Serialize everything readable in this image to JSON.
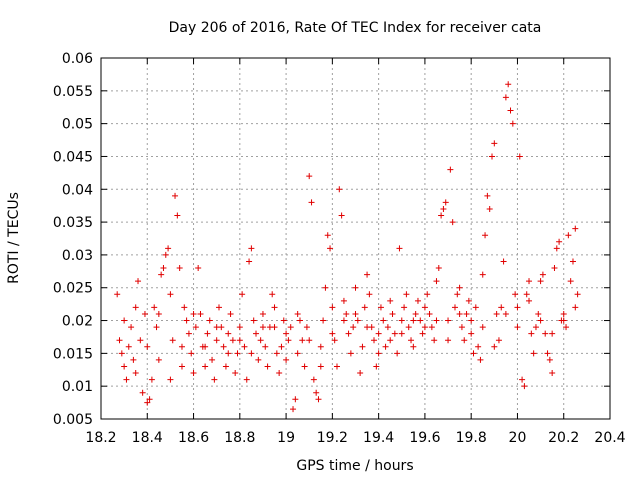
{
  "chart_data": {
    "type": "scatter",
    "title": "Day 206 of 2016, Rate Of TEC Index for receiver cata",
    "xlabel": "GPS time / hours",
    "ylabel": "ROTI / TECUs",
    "xlim": [
      18.2,
      20.4
    ],
    "ylim": [
      0.005,
      0.06
    ],
    "xticks": [
      "18.2",
      "18.4",
      "18.6",
      "18.8",
      "19",
      "19.2",
      "19.4",
      "19.6",
      "19.8",
      "20",
      "20.2",
      "20.4"
    ],
    "yticks": [
      "0.005",
      "0.01",
      "0.015",
      "0.02",
      "0.025",
      "0.03",
      "0.035",
      "0.04",
      "0.045",
      "0.05",
      "0.055",
      "0.06"
    ],
    "grid": true,
    "marker": "+",
    "color": "#e00000",
    "series": [
      {
        "name": "ROTI",
        "points": [
          [
            18.27,
            0.024
          ],
          [
            18.28,
            0.017
          ],
          [
            18.29,
            0.015
          ],
          [
            18.3,
            0.013
          ],
          [
            18.31,
            0.011
          ],
          [
            18.32,
            0.016
          ],
          [
            18.33,
            0.019
          ],
          [
            18.34,
            0.014
          ],
          [
            18.35,
            0.022
          ],
          [
            18.36,
            0.026
          ],
          [
            18.37,
            0.017
          ],
          [
            18.38,
            0.009
          ],
          [
            18.39,
            0.021
          ],
          [
            18.4,
            0.0075
          ],
          [
            18.41,
            0.008
          ],
          [
            18.42,
            0.011
          ],
          [
            18.43,
            0.022
          ],
          [
            18.44,
            0.019
          ],
          [
            18.45,
            0.014
          ],
          [
            18.46,
            0.027
          ],
          [
            18.47,
            0.028
          ],
          [
            18.48,
            0.03
          ],
          [
            18.49,
            0.031
          ],
          [
            18.5,
            0.011
          ],
          [
            18.51,
            0.017
          ],
          [
            18.52,
            0.039
          ],
          [
            18.53,
            0.036
          ],
          [
            18.54,
            0.028
          ],
          [
            18.55,
            0.013
          ],
          [
            18.56,
            0.022
          ],
          [
            18.57,
            0.02
          ],
          [
            18.58,
            0.018
          ],
          [
            18.59,
            0.015
          ],
          [
            18.6,
            0.012
          ],
          [
            18.61,
            0.019
          ],
          [
            18.62,
            0.028
          ],
          [
            18.63,
            0.021
          ],
          [
            18.64,
            0.016
          ],
          [
            18.65,
            0.013
          ],
          [
            18.66,
            0.018
          ],
          [
            18.67,
            0.02
          ],
          [
            18.68,
            0.014
          ],
          [
            18.69,
            0.011
          ],
          [
            18.7,
            0.017
          ],
          [
            18.71,
            0.022
          ],
          [
            18.72,
            0.019
          ],
          [
            18.73,
            0.016
          ],
          [
            18.74,
            0.013
          ],
          [
            18.75,
            0.018
          ],
          [
            18.76,
            0.021
          ],
          [
            18.77,
            0.017
          ],
          [
            18.78,
            0.012
          ],
          [
            18.79,
            0.015
          ],
          [
            18.8,
            0.019
          ],
          [
            18.81,
            0.024
          ],
          [
            18.82,
            0.016
          ],
          [
            18.83,
            0.011
          ],
          [
            18.84,
            0.029
          ],
          [
            18.85,
            0.031
          ],
          [
            18.86,
            0.02
          ],
          [
            18.87,
            0.018
          ],
          [
            18.88,
            0.014
          ],
          [
            18.89,
            0.017
          ],
          [
            18.9,
            0.021
          ],
          [
            18.91,
            0.016
          ],
          [
            18.92,
            0.013
          ],
          [
            18.93,
            0.019
          ],
          [
            18.94,
            0.024
          ],
          [
            18.95,
            0.019
          ],
          [
            18.96,
            0.015
          ],
          [
            18.97,
            0.012
          ],
          [
            18.98,
            0.016
          ],
          [
            18.99,
            0.02
          ],
          [
            19.0,
            0.014
          ],
          [
            19.01,
            0.017
          ],
          [
            19.02,
            0.019
          ],
          [
            19.03,
            0.0065
          ],
          [
            19.04,
            0.008
          ],
          [
            19.05,
            0.015
          ],
          [
            19.06,
            0.02
          ],
          [
            19.07,
            0.017
          ],
          [
            19.08,
            0.013
          ],
          [
            19.09,
            0.019
          ],
          [
            19.1,
            0.042
          ],
          [
            19.11,
            0.038
          ],
          [
            19.12,
            0.011
          ],
          [
            19.13,
            0.009
          ],
          [
            19.14,
            0.008
          ],
          [
            19.15,
            0.016
          ],
          [
            19.16,
            0.02
          ],
          [
            19.17,
            0.025
          ],
          [
            19.18,
            0.033
          ],
          [
            19.19,
            0.031
          ],
          [
            19.2,
            0.022
          ],
          [
            19.21,
            0.017
          ],
          [
            19.22,
            0.013
          ],
          [
            19.23,
            0.04
          ],
          [
            19.24,
            0.036
          ],
          [
            19.25,
            0.023
          ],
          [
            19.26,
            0.021
          ],
          [
            19.27,
            0.018
          ],
          [
            19.28,
            0.015
          ],
          [
            19.29,
            0.019
          ],
          [
            19.3,
            0.025
          ],
          [
            19.31,
            0.02
          ],
          [
            19.32,
            0.012
          ],
          [
            19.33,
            0.016
          ],
          [
            19.34,
            0.022
          ],
          [
            19.35,
            0.027
          ],
          [
            19.36,
            0.024
          ],
          [
            19.37,
            0.019
          ],
          [
            19.38,
            0.017
          ],
          [
            19.39,
            0.013
          ],
          [
            19.4,
            0.018
          ],
          [
            19.41,
            0.022
          ],
          [
            19.42,
            0.02
          ],
          [
            19.43,
            0.016
          ],
          [
            19.44,
            0.019
          ],
          [
            19.45,
            0.023
          ],
          [
            19.46,
            0.021
          ],
          [
            19.47,
            0.018
          ],
          [
            19.48,
            0.015
          ],
          [
            19.49,
            0.031
          ],
          [
            19.5,
            0.02
          ],
          [
            19.51,
            0.022
          ],
          [
            19.52,
            0.024
          ],
          [
            19.53,
            0.019
          ],
          [
            19.54,
            0.017
          ],
          [
            19.55,
            0.016
          ],
          [
            19.56,
            0.021
          ],
          [
            19.57,
            0.023
          ],
          [
            19.58,
            0.02
          ],
          [
            19.59,
            0.018
          ],
          [
            19.6,
            0.022
          ],
          [
            19.61,
            0.024
          ],
          [
            19.62,
            0.021
          ],
          [
            19.63,
            0.019
          ],
          [
            19.64,
            0.017
          ],
          [
            19.65,
            0.026
          ],
          [
            19.66,
            0.028
          ],
          [
            19.67,
            0.036
          ],
          [
            19.68,
            0.037
          ],
          [
            19.69,
            0.038
          ],
          [
            19.7,
            0.02
          ],
          [
            19.71,
            0.043
          ],
          [
            19.72,
            0.035
          ],
          [
            19.73,
            0.022
          ],
          [
            19.74,
            0.024
          ],
          [
            19.75,
            0.025
          ],
          [
            19.76,
            0.019
          ],
          [
            19.77,
            0.017
          ],
          [
            19.78,
            0.021
          ],
          [
            19.79,
            0.023
          ],
          [
            19.8,
            0.018
          ],
          [
            19.81,
            0.015
          ],
          [
            19.82,
            0.022
          ],
          [
            19.83,
            0.016
          ],
          [
            19.84,
            0.014
          ],
          [
            19.85,
            0.027
          ],
          [
            19.86,
            0.033
          ],
          [
            19.87,
            0.039
          ],
          [
            19.88,
            0.037
          ],
          [
            19.89,
            0.045
          ],
          [
            19.9,
            0.047
          ],
          [
            19.91,
            0.021
          ],
          [
            19.92,
            0.017
          ],
          [
            19.93,
            0.022
          ],
          [
            19.94,
            0.029
          ],
          [
            19.95,
            0.054
          ],
          [
            19.96,
            0.056
          ],
          [
            19.97,
            0.052
          ],
          [
            19.98,
            0.05
          ],
          [
            19.99,
            0.024
          ],
          [
            20.0,
            0.019
          ],
          [
            20.01,
            0.045
          ],
          [
            20.02,
            0.011
          ],
          [
            20.03,
            0.01
          ],
          [
            20.04,
            0.024
          ],
          [
            20.05,
            0.026
          ],
          [
            20.06,
            0.018
          ],
          [
            20.07,
            0.015
          ],
          [
            20.08,
            0.019
          ],
          [
            20.09,
            0.021
          ],
          [
            20.1,
            0.026
          ],
          [
            20.11,
            0.027
          ],
          [
            20.12,
            0.018
          ],
          [
            20.13,
            0.015
          ],
          [
            20.14,
            0.014
          ],
          [
            20.15,
            0.012
          ],
          [
            20.16,
            0.028
          ],
          [
            20.17,
            0.031
          ],
          [
            20.18,
            0.032
          ],
          [
            20.19,
            0.02
          ],
          [
            20.2,
            0.021
          ],
          [
            20.21,
            0.019
          ],
          [
            20.22,
            0.033
          ],
          [
            20.23,
            0.026
          ],
          [
            20.24,
            0.029
          ],
          [
            20.25,
            0.034
          ],
          [
            20.26,
            0.024
          ],
          [
            18.3,
            0.02
          ],
          [
            18.35,
            0.012
          ],
          [
            18.4,
            0.016
          ],
          [
            18.45,
            0.021
          ],
          [
            18.5,
            0.024
          ],
          [
            18.55,
            0.016
          ],
          [
            18.6,
            0.021
          ],
          [
            18.65,
            0.016
          ],
          [
            18.7,
            0.019
          ],
          [
            18.75,
            0.015
          ],
          [
            18.8,
            0.017
          ],
          [
            18.85,
            0.015
          ],
          [
            18.9,
            0.019
          ],
          [
            18.95,
            0.022
          ],
          [
            19.0,
            0.018
          ],
          [
            19.05,
            0.021
          ],
          [
            19.1,
            0.017
          ],
          [
            19.15,
            0.013
          ],
          [
            19.2,
            0.018
          ],
          [
            19.25,
            0.02
          ],
          [
            19.3,
            0.021
          ],
          [
            19.35,
            0.019
          ],
          [
            19.4,
            0.015
          ],
          [
            19.45,
            0.017
          ],
          [
            19.5,
            0.018
          ],
          [
            19.55,
            0.02
          ],
          [
            19.6,
            0.019
          ],
          [
            19.65,
            0.02
          ],
          [
            19.7,
            0.017
          ],
          [
            19.75,
            0.021
          ],
          [
            19.8,
            0.02
          ],
          [
            19.85,
            0.019
          ],
          [
            19.9,
            0.016
          ],
          [
            19.95,
            0.021
          ],
          [
            20.0,
            0.022
          ],
          [
            20.05,
            0.023
          ],
          [
            20.1,
            0.02
          ],
          [
            20.15,
            0.018
          ],
          [
            20.2,
            0.02
          ],
          [
            20.25,
            0.022
          ]
        ]
      }
    ]
  }
}
